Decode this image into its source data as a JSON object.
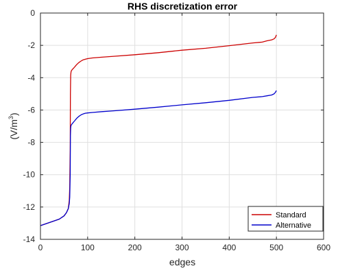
{
  "chart_data": {
    "type": "line",
    "title": "RHS discretization error",
    "xlabel": "edges",
    "ylabel": "(V/m",
    "ylabel_sup": "3",
    "ylabel_close": ")",
    "xlim": [
      0,
      600
    ],
    "ylim": [
      -14,
      0
    ],
    "xticks": [
      0,
      100,
      200,
      300,
      400,
      500,
      600
    ],
    "yticks": [
      0,
      -2,
      -4,
      -6,
      -8,
      -10,
      -12,
      -14
    ],
    "grid": true,
    "legend_position": "bottom-right",
    "series": [
      {
        "name": "Standard",
        "color": "#cc0000",
        "x": [
          0,
          10,
          20,
          30,
          40,
          50,
          55,
          59,
          61,
          62,
          63,
          63.5,
          64,
          64.5,
          65,
          66,
          68,
          70,
          72,
          75,
          78,
          82,
          86,
          90,
          95,
          100,
          110,
          130,
          160,
          200,
          250,
          300,
          350,
          400,
          450,
          470,
          480,
          490,
          495,
          498,
          500
        ],
        "y": [
          -13.15,
          -13.05,
          -12.95,
          -12.85,
          -12.75,
          -12.55,
          -12.35,
          -12.1,
          -11.6,
          -10.8,
          -8.5,
          -5.0,
          -3.85,
          -3.72,
          -3.62,
          -3.55,
          -3.48,
          -3.42,
          -3.35,
          -3.25,
          -3.15,
          -3.05,
          -2.97,
          -2.9,
          -2.86,
          -2.82,
          -2.78,
          -2.73,
          -2.67,
          -2.58,
          -2.45,
          -2.3,
          -2.18,
          -2.02,
          -1.85,
          -1.8,
          -1.72,
          -1.66,
          -1.6,
          -1.5,
          -1.35
        ]
      },
      {
        "name": "Alternative",
        "color": "#0000cc",
        "x": [
          0,
          10,
          20,
          30,
          40,
          50,
          55,
          59,
          61,
          62,
          63,
          63.5,
          64,
          64.5,
          65,
          66,
          68,
          70,
          72,
          75,
          78,
          82,
          86,
          90,
          95,
          100,
          110,
          130,
          160,
          200,
          250,
          300,
          350,
          400,
          450,
          470,
          480,
          490,
          495,
          498,
          500
        ],
        "y": [
          -13.15,
          -13.05,
          -12.95,
          -12.85,
          -12.75,
          -12.55,
          -12.35,
          -12.1,
          -11.8,
          -11.4,
          -10.0,
          -7.6,
          -7.1,
          -7.0,
          -6.95,
          -6.9,
          -6.82,
          -6.75,
          -6.68,
          -6.58,
          -6.48,
          -6.38,
          -6.3,
          -6.25,
          -6.2,
          -6.18,
          -6.15,
          -6.1,
          -6.04,
          -5.95,
          -5.82,
          -5.68,
          -5.55,
          -5.4,
          -5.22,
          -5.17,
          -5.12,
          -5.07,
          -5.0,
          -4.9,
          -4.8
        ]
      }
    ]
  }
}
